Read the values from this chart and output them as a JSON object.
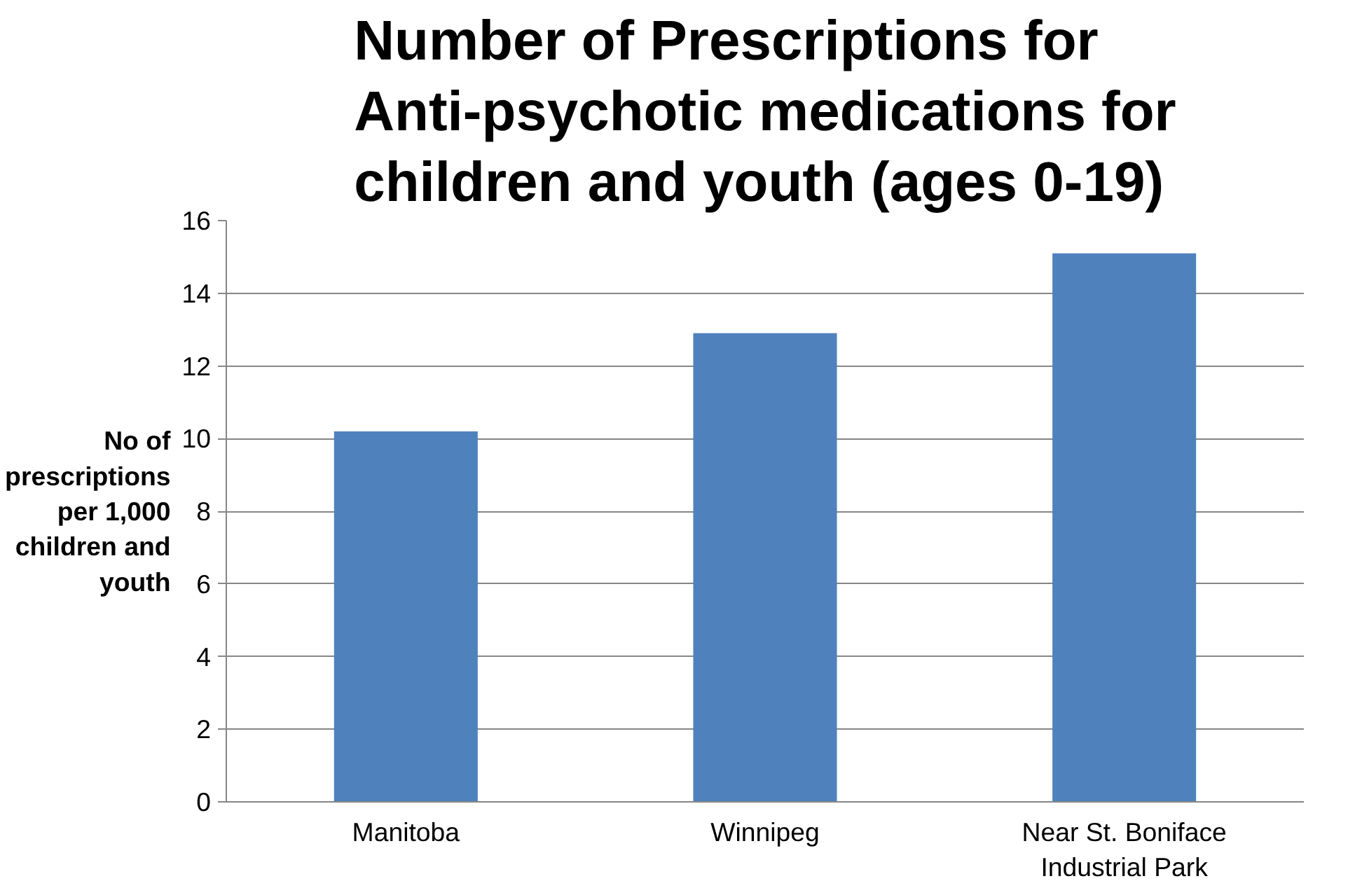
{
  "chart_data": {
    "type": "bar",
    "title": "Number of Prescriptions for Anti-psychotic medications for children and youth (ages 0-19)",
    "ylabel": "No of prescriptions per 1,000 children and youth",
    "categories": [
      "Manitoba",
      "Winnipeg",
      "Near St. Boniface Industrial Park"
    ],
    "values": [
      10.2,
      12.9,
      15.1
    ],
    "color": "#4f81bd",
    "ylim": [
      0,
      16
    ],
    "yticks": [
      0,
      2,
      4,
      6,
      8,
      10,
      12,
      14,
      16
    ],
    "grid": "y"
  }
}
